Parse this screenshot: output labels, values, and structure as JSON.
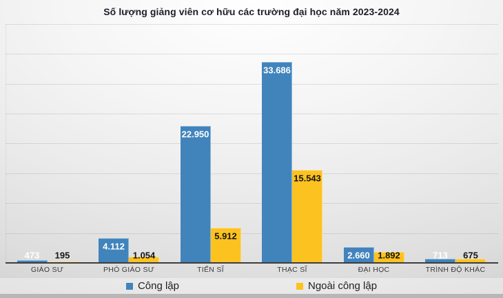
{
  "chart_data": {
    "type": "bar",
    "title": "Số lượng giảng viên cơ hữu các trường đại học năm 2023-2024",
    "categories": [
      "GIÁO SƯ",
      "PHÓ GIÁO SƯ",
      "TIẾN SĨ",
      "THẠC SĨ",
      "ĐẠI HỌC",
      "TRÌNH ĐỘ KHÁC"
    ],
    "series": [
      {
        "name": "Công lập",
        "color": "#4184BC",
        "label_color": "#ffffff",
        "values": [
          473,
          4112,
          22950,
          33686,
          2660,
          713
        ],
        "labels": [
          "473",
          "4.112",
          "22.950",
          "33.686",
          "2.660",
          "713"
        ]
      },
      {
        "name": "Ngoài công lập",
        "color": "#FCC220",
        "label_color": "#141414",
        "values": [
          195,
          1054,
          5912,
          15543,
          1892,
          675
        ],
        "labels": [
          "195",
          "1.054",
          "5.912",
          "15.543",
          "1.892",
          "675"
        ]
      }
    ],
    "ylim": [
      0,
      40000
    ],
    "grid_step": 5000,
    "y_axis_tick_labels_visible": false,
    "grid": true,
    "legend_position": "bottom",
    "value_label_placement": "inside-end"
  }
}
